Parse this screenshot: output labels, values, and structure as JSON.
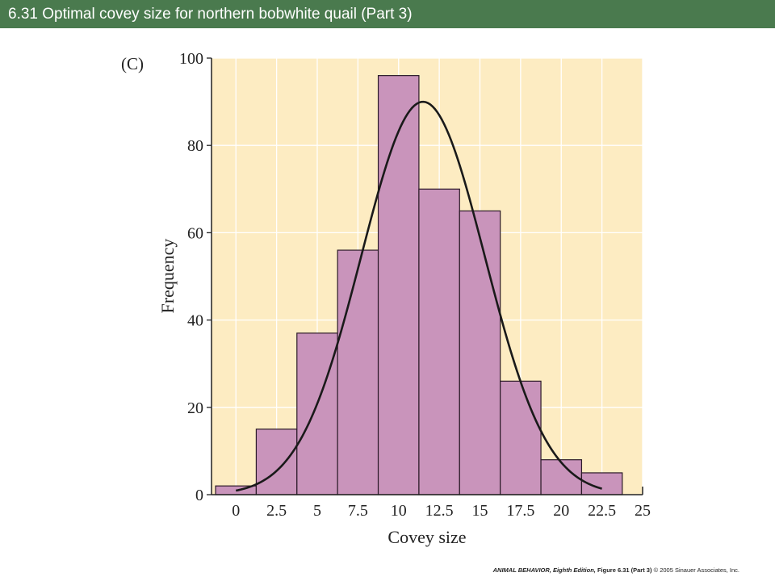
{
  "slide": {
    "title": "6.31  Optimal covey size for northern bobwhite quail (Part 3)"
  },
  "footer": {
    "book": "ANIMAL BEHAVIOR, Eighth Edition,",
    "figure": "Figure 6.31 (Part 3)",
    "copyright": "© 2005 Sinauer Associates, Inc."
  },
  "chart_data": {
    "type": "bar",
    "panel_label": "(C)",
    "xlabel": "Covey size",
    "ylabel": "Frequency",
    "xlim": [
      -1.5,
      25
    ],
    "ylim": [
      0,
      100
    ],
    "x_ticks": [
      0,
      2.5,
      5,
      7.5,
      10,
      12.5,
      15,
      17.5,
      20,
      22.5,
      25
    ],
    "x_tick_labels": [
      "0",
      "2.5",
      "5",
      "7.5",
      "10",
      "12.5",
      "15",
      "17.5",
      "20",
      "22.5",
      "25"
    ],
    "y_ticks": [
      0,
      20,
      40,
      60,
      80,
      100
    ],
    "y_tick_labels": [
      "0",
      "20",
      "40",
      "60",
      "80",
      "100"
    ],
    "bin_width": 2.5,
    "bins": [
      {
        "start": -1.25,
        "value": 2
      },
      {
        "start": 1.25,
        "value": 15
      },
      {
        "start": 3.75,
        "value": 37
      },
      {
        "start": 6.25,
        "value": 56
      },
      {
        "start": 8.75,
        "value": 96
      },
      {
        "start": 11.25,
        "value": 70
      },
      {
        "start": 13.75,
        "value": 65
      },
      {
        "start": 16.25,
        "value": 26
      },
      {
        "start": 18.75,
        "value": 8
      },
      {
        "start": 21.25,
        "value": 5
      }
    ],
    "fit_curve": {
      "type": "normal",
      "mean": 11.5,
      "sd": 3.8,
      "peak": 90,
      "x_range": [
        0,
        22.5
      ]
    },
    "grid": true,
    "colors": {
      "plot_background": "#fdecc2",
      "gridline": "#ffffff",
      "bar_fill": "#c994bb",
      "bar_stroke": "#2b1a28",
      "curve": "#1a1a1a",
      "title_bar": "#4a7a4e"
    }
  }
}
